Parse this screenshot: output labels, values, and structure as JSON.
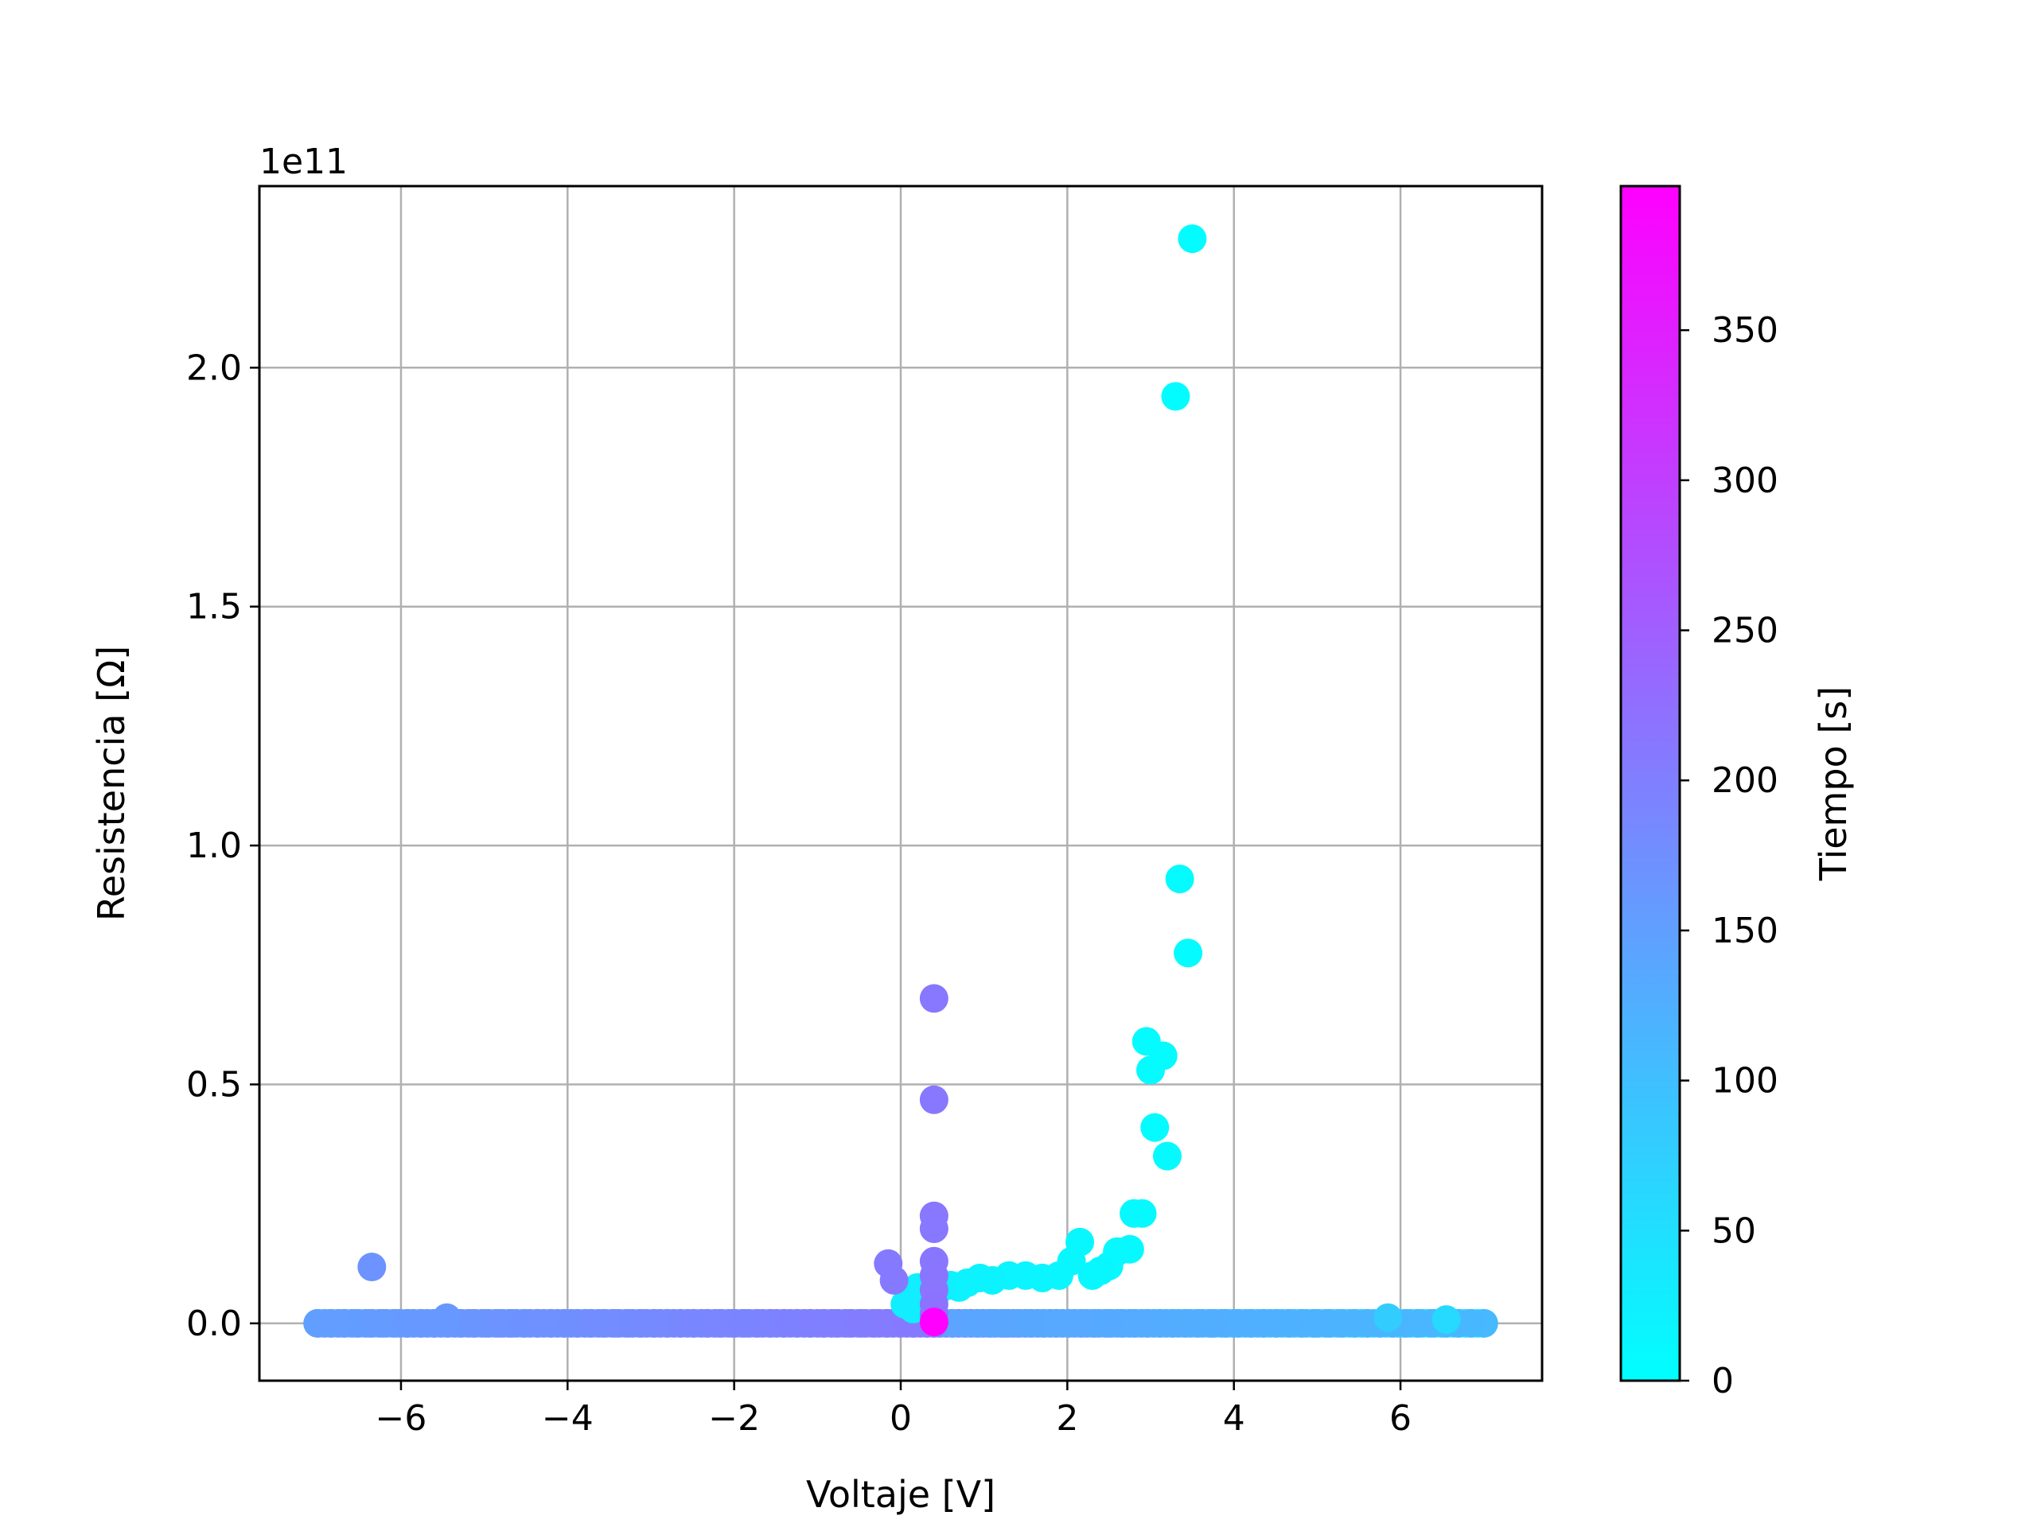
{
  "chart_data": {
    "type": "scatter",
    "title": "",
    "xlabel": "Voltaje [V]",
    "ylabel": "Resistencia [Ω]",
    "y_offset_text": "1e11",
    "xlim": [
      -7.7,
      7.7
    ],
    "ylim": [
      -0.12,
      2.38
    ],
    "y_unit_scale": "1e11",
    "grid": true,
    "x_ticks": [
      {
        "value": -6,
        "label": "−6"
      },
      {
        "value": -4,
        "label": "−4"
      },
      {
        "value": -2,
        "label": "−2"
      },
      {
        "value": 0,
        "label": "0"
      },
      {
        "value": 2,
        "label": "2"
      },
      {
        "value": 4,
        "label": "4"
      },
      {
        "value": 6,
        "label": "6"
      }
    ],
    "y_ticks": [
      {
        "value": 0.0,
        "label": "0.0"
      },
      {
        "value": 0.5,
        "label": "0.5"
      },
      {
        "value": 1.0,
        "label": "1.0"
      },
      {
        "value": 1.5,
        "label": "1.5"
      },
      {
        "value": 2.0,
        "label": "2.0"
      }
    ],
    "colorbar": {
      "label": "Tiempo [s]",
      "range": [
        0,
        398
      ],
      "colormap": [
        "#00ffff",
        "#ff00ff"
      ],
      "ticks": [
        {
          "value": 0,
          "label": "0"
        },
        {
          "value": 50,
          "label": "50"
        },
        {
          "value": 100,
          "label": "100"
        },
        {
          "value": 150,
          "label": "150"
        },
        {
          "value": 200,
          "label": "200"
        },
        {
          "value": 250,
          "label": "250"
        },
        {
          "value": 300,
          "label": "300"
        },
        {
          "value": 350,
          "label": "350"
        }
      ]
    },
    "points": [
      {
        "v": 3.5,
        "r": 2.27,
        "t": 5
      },
      {
        "v": 3.3,
        "r": 1.94,
        "t": 5
      },
      {
        "v": 3.35,
        "r": 0.93,
        "t": 6
      },
      {
        "v": 3.45,
        "r": 0.775,
        "t": 6
      },
      {
        "v": 2.95,
        "r": 0.59,
        "t": 7
      },
      {
        "v": 3.15,
        "r": 0.56,
        "t": 7
      },
      {
        "v": 3.0,
        "r": 0.53,
        "t": 7
      },
      {
        "v": 3.05,
        "r": 0.41,
        "t": 7
      },
      {
        "v": 3.2,
        "r": 0.35,
        "t": 8
      },
      {
        "v": 2.8,
        "r": 0.23,
        "t": 9
      },
      {
        "v": 2.9,
        "r": 0.23,
        "t": 9
      },
      {
        "v": 2.15,
        "r": 0.17,
        "t": 12
      },
      {
        "v": 2.75,
        "r": 0.155,
        "t": 10
      },
      {
        "v": 2.6,
        "r": 0.15,
        "t": 11
      },
      {
        "v": 2.5,
        "r": 0.12,
        "t": 11
      },
      {
        "v": 2.4,
        "r": 0.11,
        "t": 12
      },
      {
        "v": 2.3,
        "r": 0.1,
        "t": 12
      },
      {
        "v": 2.05,
        "r": 0.13,
        "t": 13
      },
      {
        "v": 1.9,
        "r": 0.1,
        "t": 14
      },
      {
        "v": 1.7,
        "r": 0.095,
        "t": 15
      },
      {
        "v": 1.5,
        "r": 0.1,
        "t": 16
      },
      {
        "v": 1.3,
        "r": 0.1,
        "t": 17
      },
      {
        "v": 1.1,
        "r": 0.09,
        "t": 18
      },
      {
        "v": 0.95,
        "r": 0.095,
        "t": 19
      },
      {
        "v": 0.8,
        "r": 0.085,
        "t": 20
      },
      {
        "v": 0.7,
        "r": 0.075,
        "t": 21
      },
      {
        "v": 0.6,
        "r": 0.08,
        "t": 22
      },
      {
        "v": 0.5,
        "r": 0.075,
        "t": 23
      },
      {
        "v": 0.3,
        "r": 0.07,
        "t": 24
      },
      {
        "v": 0.2,
        "r": 0.075,
        "t": 25
      },
      {
        "v": 0.1,
        "r": 0.06,
        "t": 26
      },
      {
        "v": 0.05,
        "r": 0.04,
        "t": 27
      },
      {
        "v": 0.15,
        "r": 0.03,
        "t": 28
      },
      {
        "v": -6.35,
        "r": 0.118,
        "t": 168
      },
      {
        "v": -5.45,
        "r": 0.012,
        "t": 160
      },
      {
        "v": 5.85,
        "r": 0.012,
        "t": 80
      },
      {
        "v": 6.55,
        "r": 0.008,
        "t": 60
      },
      {
        "v": 0.4,
        "r": 0.68,
        "t": 212
      },
      {
        "v": 0.4,
        "r": 0.468,
        "t": 212
      },
      {
        "v": 0.4,
        "r": 0.225,
        "t": 212
      },
      {
        "v": 0.4,
        "r": 0.198,
        "t": 212
      },
      {
        "v": 0.4,
        "r": 0.13,
        "t": 214
      },
      {
        "v": 0.4,
        "r": 0.1,
        "t": 214
      },
      {
        "v": 0.4,
        "r": 0.07,
        "t": 216
      },
      {
        "v": 0.4,
        "r": 0.04,
        "t": 218
      },
      {
        "v": 0.4,
        "r": 0.02,
        "t": 220
      },
      {
        "v": -0.15,
        "r": 0.125,
        "t": 208
      },
      {
        "v": -0.08,
        "r": 0.09,
        "t": 208
      },
      {
        "v": 0.4,
        "r": 0.003,
        "t": 398
      }
    ],
    "bands": [
      {
        "v_start": 0.4,
        "v_end": 7.0,
        "r": 0.0,
        "t_start": 190,
        "t_end": 30
      },
      {
        "v_start": 7.0,
        "v_end": -7.0,
        "r": 0.0,
        "t_start": 110,
        "t_end": 180
      },
      {
        "v_start": -7.0,
        "v_end": 0.4,
        "r": 0.0,
        "t_start": 150,
        "t_end": 210
      }
    ]
  }
}
